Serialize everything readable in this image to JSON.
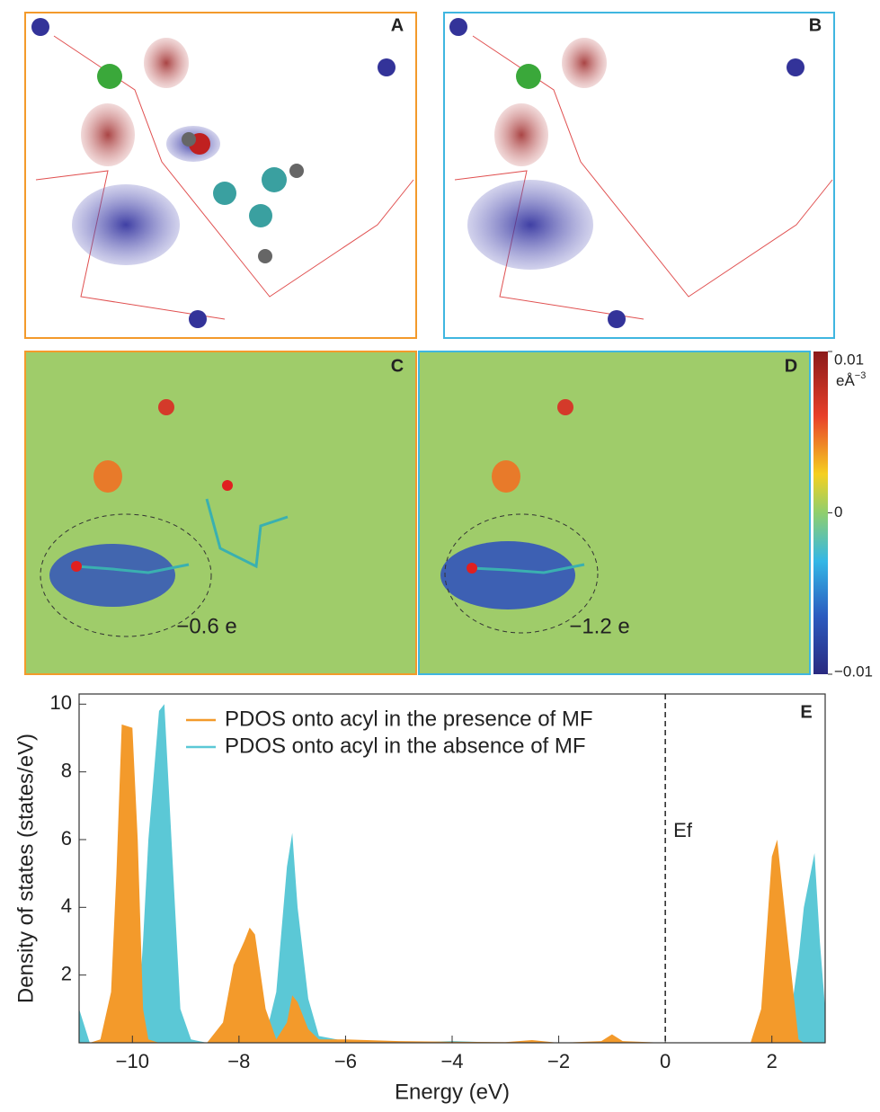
{
  "panels": {
    "labels": [
      "A",
      "B",
      "C",
      "D"
    ],
    "charge_annotations": [
      "−0.6 e",
      "−1.2 e"
    ]
  },
  "colorbar": {
    "range": [
      -0.01,
      0.01
    ],
    "ticks": [
      0.01,
      0,
      {
        "value": -0.01,
        "label": "−0.01"
      }
    ],
    "unit": "eÅ",
    "unit_exponent": "−3"
  },
  "chart_data": {
    "type": "area",
    "panel_label": "E",
    "x_label": "Energy (eV)",
    "y_label": "Density of states (states/eV)",
    "x": [
      -11,
      -10.8,
      -10.6,
      -10.4,
      -10.3,
      -10.2,
      -10.0,
      -9.9,
      -9.8,
      -9.7,
      -9.5,
      -9.4,
      -9.3,
      -9.1,
      -8.9,
      -8.6,
      -8.3,
      -8.1,
      -7.9,
      -7.8,
      -7.7,
      -7.5,
      -7.3,
      -7.1,
      -7.0,
      -6.9,
      -6.7,
      -6.5,
      -6.0,
      -5.0,
      -4.0,
      -3.0,
      -2.5,
      -2.0,
      -1.2,
      -1.0,
      -0.8,
      0,
      1.0,
      1.6,
      1.8,
      2.0,
      2.1,
      2.3,
      2.5,
      2.6,
      2.8,
      2.9,
      3.0
    ],
    "series": [
      {
        "name": "PDOS onto acyl in the absence of MF",
        "color": "#5bc8d6",
        "values": [
          1.0,
          0,
          0,
          0,
          0,
          0,
          0.1,
          0.5,
          3,
          6,
          9.8,
          10,
          7,
          1,
          0.1,
          0,
          0,
          0,
          0,
          0,
          0,
          0.2,
          1.5,
          5.2,
          6.2,
          4,
          1.3,
          0.2,
          0.05,
          0,
          0.05,
          0,
          0,
          0,
          0,
          0,
          0,
          0,
          0,
          0,
          0,
          0,
          0,
          0.2,
          2.5,
          4,
          5.6,
          3,
          1
        ]
      },
      {
        "name": "PDOS onto acyl in the presence of MF",
        "color": "#f39a2b",
        "values": [
          0,
          0,
          0.1,
          1.5,
          5,
          9.4,
          9.3,
          6,
          1,
          0.1,
          0,
          0,
          0,
          0,
          0,
          0,
          0.6,
          2.3,
          3,
          3.4,
          3.2,
          1,
          0.1,
          0.6,
          1.4,
          1.2,
          0.4,
          0.1,
          0.1,
          0.05,
          0.03,
          0.02,
          0.08,
          0,
          0.05,
          0.25,
          0.05,
          0,
          0,
          0,
          1,
          5.5,
          6,
          3,
          0.1,
          0,
          0,
          0,
          0
        ]
      }
    ],
    "legend_order": [
      1,
      0
    ],
    "reference_line": {
      "x": 0,
      "label": "Ef"
    },
    "xlim": [
      -11,
      3
    ],
    "ylim": [
      0,
      10.3
    ],
    "xticks": [
      {
        "value": -10,
        "label": "−10"
      },
      {
        "value": -8,
        "label": "−8"
      },
      {
        "value": -6,
        "label": "−6"
      },
      {
        "value": -4,
        "label": "−4"
      },
      {
        "value": -2,
        "label": "−2"
      },
      0,
      2
    ],
    "yticks": [
      2,
      4,
      6,
      8,
      10
    ]
  }
}
